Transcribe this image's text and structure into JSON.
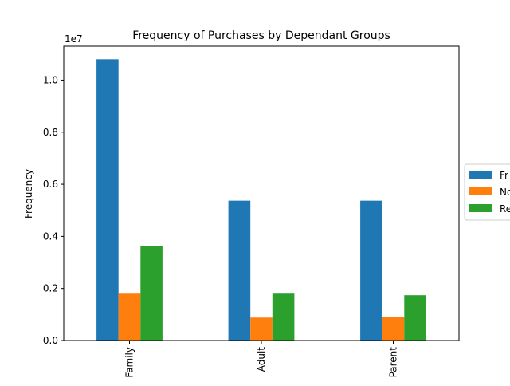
{
  "chart_data": {
    "type": "bar",
    "title": "Frequency of Purchases by Dependant Groups",
    "xlabel": "",
    "ylabel": "Frequency",
    "y_multiplier_label": "1e7",
    "y_scale": 10000000,
    "ylim": [
      0,
      11300000
    ],
    "yticks": [
      0,
      2000000,
      4000000,
      6000000,
      8000000,
      10000000
    ],
    "ytick_labels": [
      "0.0",
      "0.2",
      "0.4",
      "0.6",
      "0.8",
      "1.0"
    ],
    "categories": [
      "Family",
      "Adult",
      "Parent"
    ],
    "category_labels_visible": [
      "Family",
      "Adult",
      "Parent"
    ],
    "series": [
      {
        "name": "Fr",
        "color": "#1f77b4",
        "values": [
          10800000,
          5370000,
          5370000
        ]
      },
      {
        "name": "No",
        "color": "#ff7f0e",
        "values": [
          1800000,
          880000,
          910000
        ]
      },
      {
        "name": "Re",
        "color": "#2ca02c",
        "values": [
          3620000,
          1800000,
          1740000
        ]
      }
    ],
    "legend_position": "right (clipped)",
    "grid": false
  }
}
